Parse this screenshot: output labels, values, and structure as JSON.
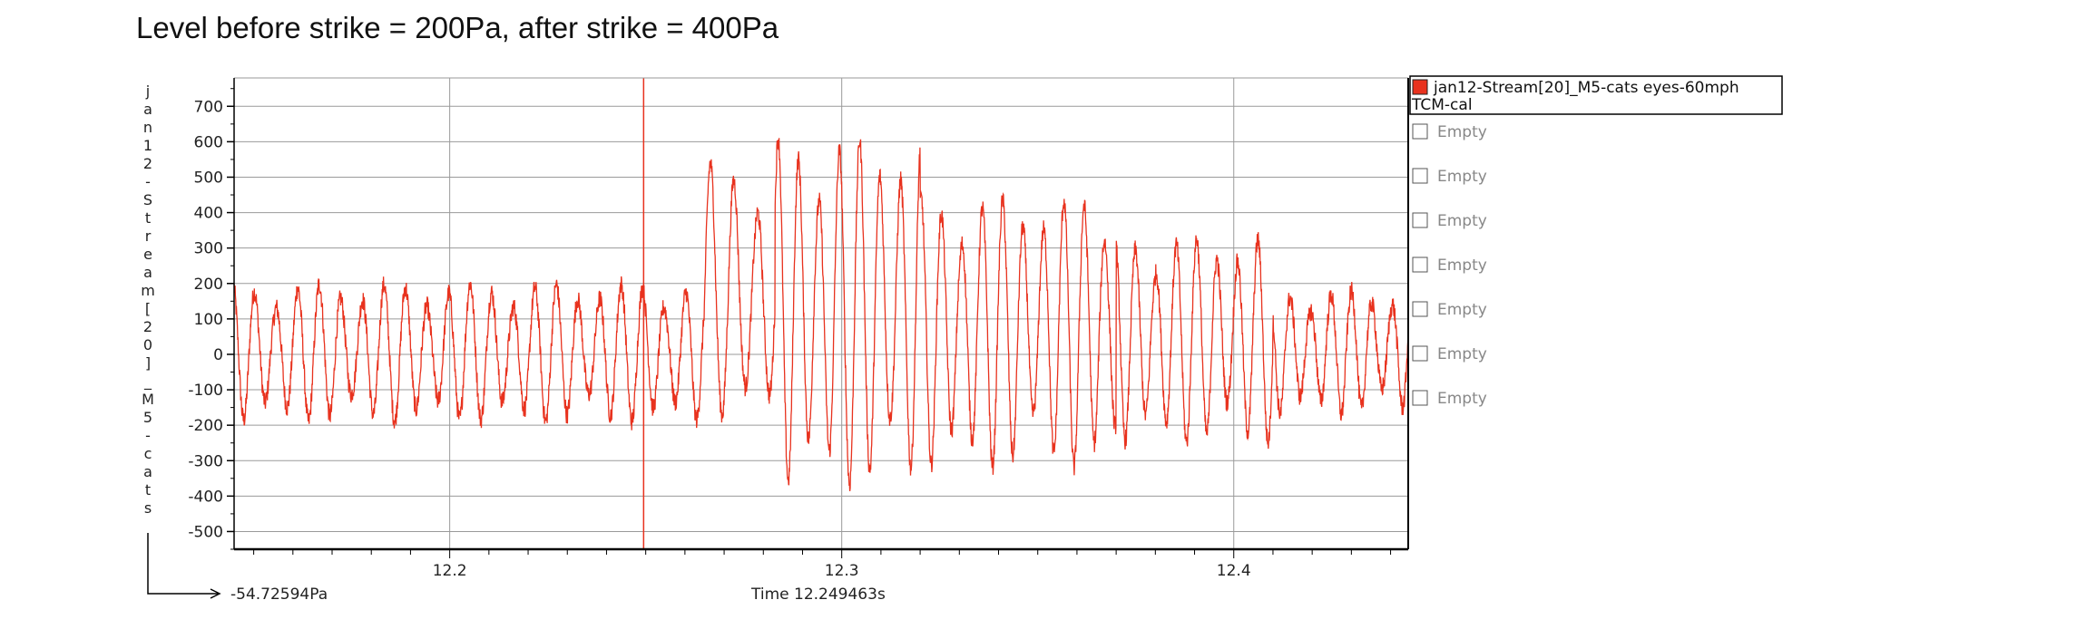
{
  "chart_data": {
    "type": "line",
    "title": "Level before strike = 200Pa, after strike = 400Pa",
    "ylabel": "jan12-Stream[20]_M5-cats",
    "ylim": [
      -550,
      780
    ],
    "xlim": [
      12.145,
      12.4445
    ],
    "yticks": [
      700,
      600,
      500,
      400,
      300,
      200,
      100,
      0,
      -100,
      -200,
      -300,
      -400,
      -500
    ],
    "xticks": [
      12.2,
      12.3,
      12.4
    ],
    "grid": true,
    "cursor_x": 12.249463,
    "cursor_readout_y": "-54.72594Pa",
    "cursor_readout_x": "Time 12.249463s",
    "legend_position": "right",
    "series": [
      {
        "name": "jan12-Stream[20]_M5-cats eyes-60mph TCM-cal",
        "color": "#e8321e",
        "segments": [
          {
            "t0": 12.145,
            "t1": 12.265,
            "period": 0.0055,
            "pos": 200,
            "neg": -190,
            "center": 10,
            "phase": 0.3
          },
          {
            "t0": 12.265,
            "t1": 12.283,
            "period": 0.006,
            "pos": 540,
            "neg": -180,
            "center": 150,
            "phase": 0.0
          },
          {
            "t0": 12.283,
            "t1": 12.32,
            "period": 0.0052,
            "pos": 610,
            "neg": -370,
            "center": 120,
            "phase": 0.1
          },
          {
            "t0": 12.32,
            "t1": 12.37,
            "period": 0.0052,
            "pos": 440,
            "neg": -320,
            "center": 80,
            "phase": 0.2
          },
          {
            "t0": 12.37,
            "t1": 12.41,
            "period": 0.0052,
            "pos": 330,
            "neg": -250,
            "center": 50,
            "phase": 0.3
          },
          {
            "t0": 12.41,
            "t1": 12.4445,
            "period": 0.0052,
            "pos": 180,
            "neg": -170,
            "center": 20,
            "phase": 0.4
          }
        ]
      }
    ],
    "legend_items": [
      {
        "label_line1": "jan12-Stream[20]_M5-cats eyes-60mph",
        "label_line2": "TCM-cal",
        "color": "#e8321e"
      },
      {
        "label": "Empty"
      },
      {
        "label": "Empty"
      },
      {
        "label": "Empty"
      },
      {
        "label": "Empty"
      },
      {
        "label": "Empty"
      },
      {
        "label": "Empty"
      },
      {
        "label": "Empty"
      }
    ]
  }
}
